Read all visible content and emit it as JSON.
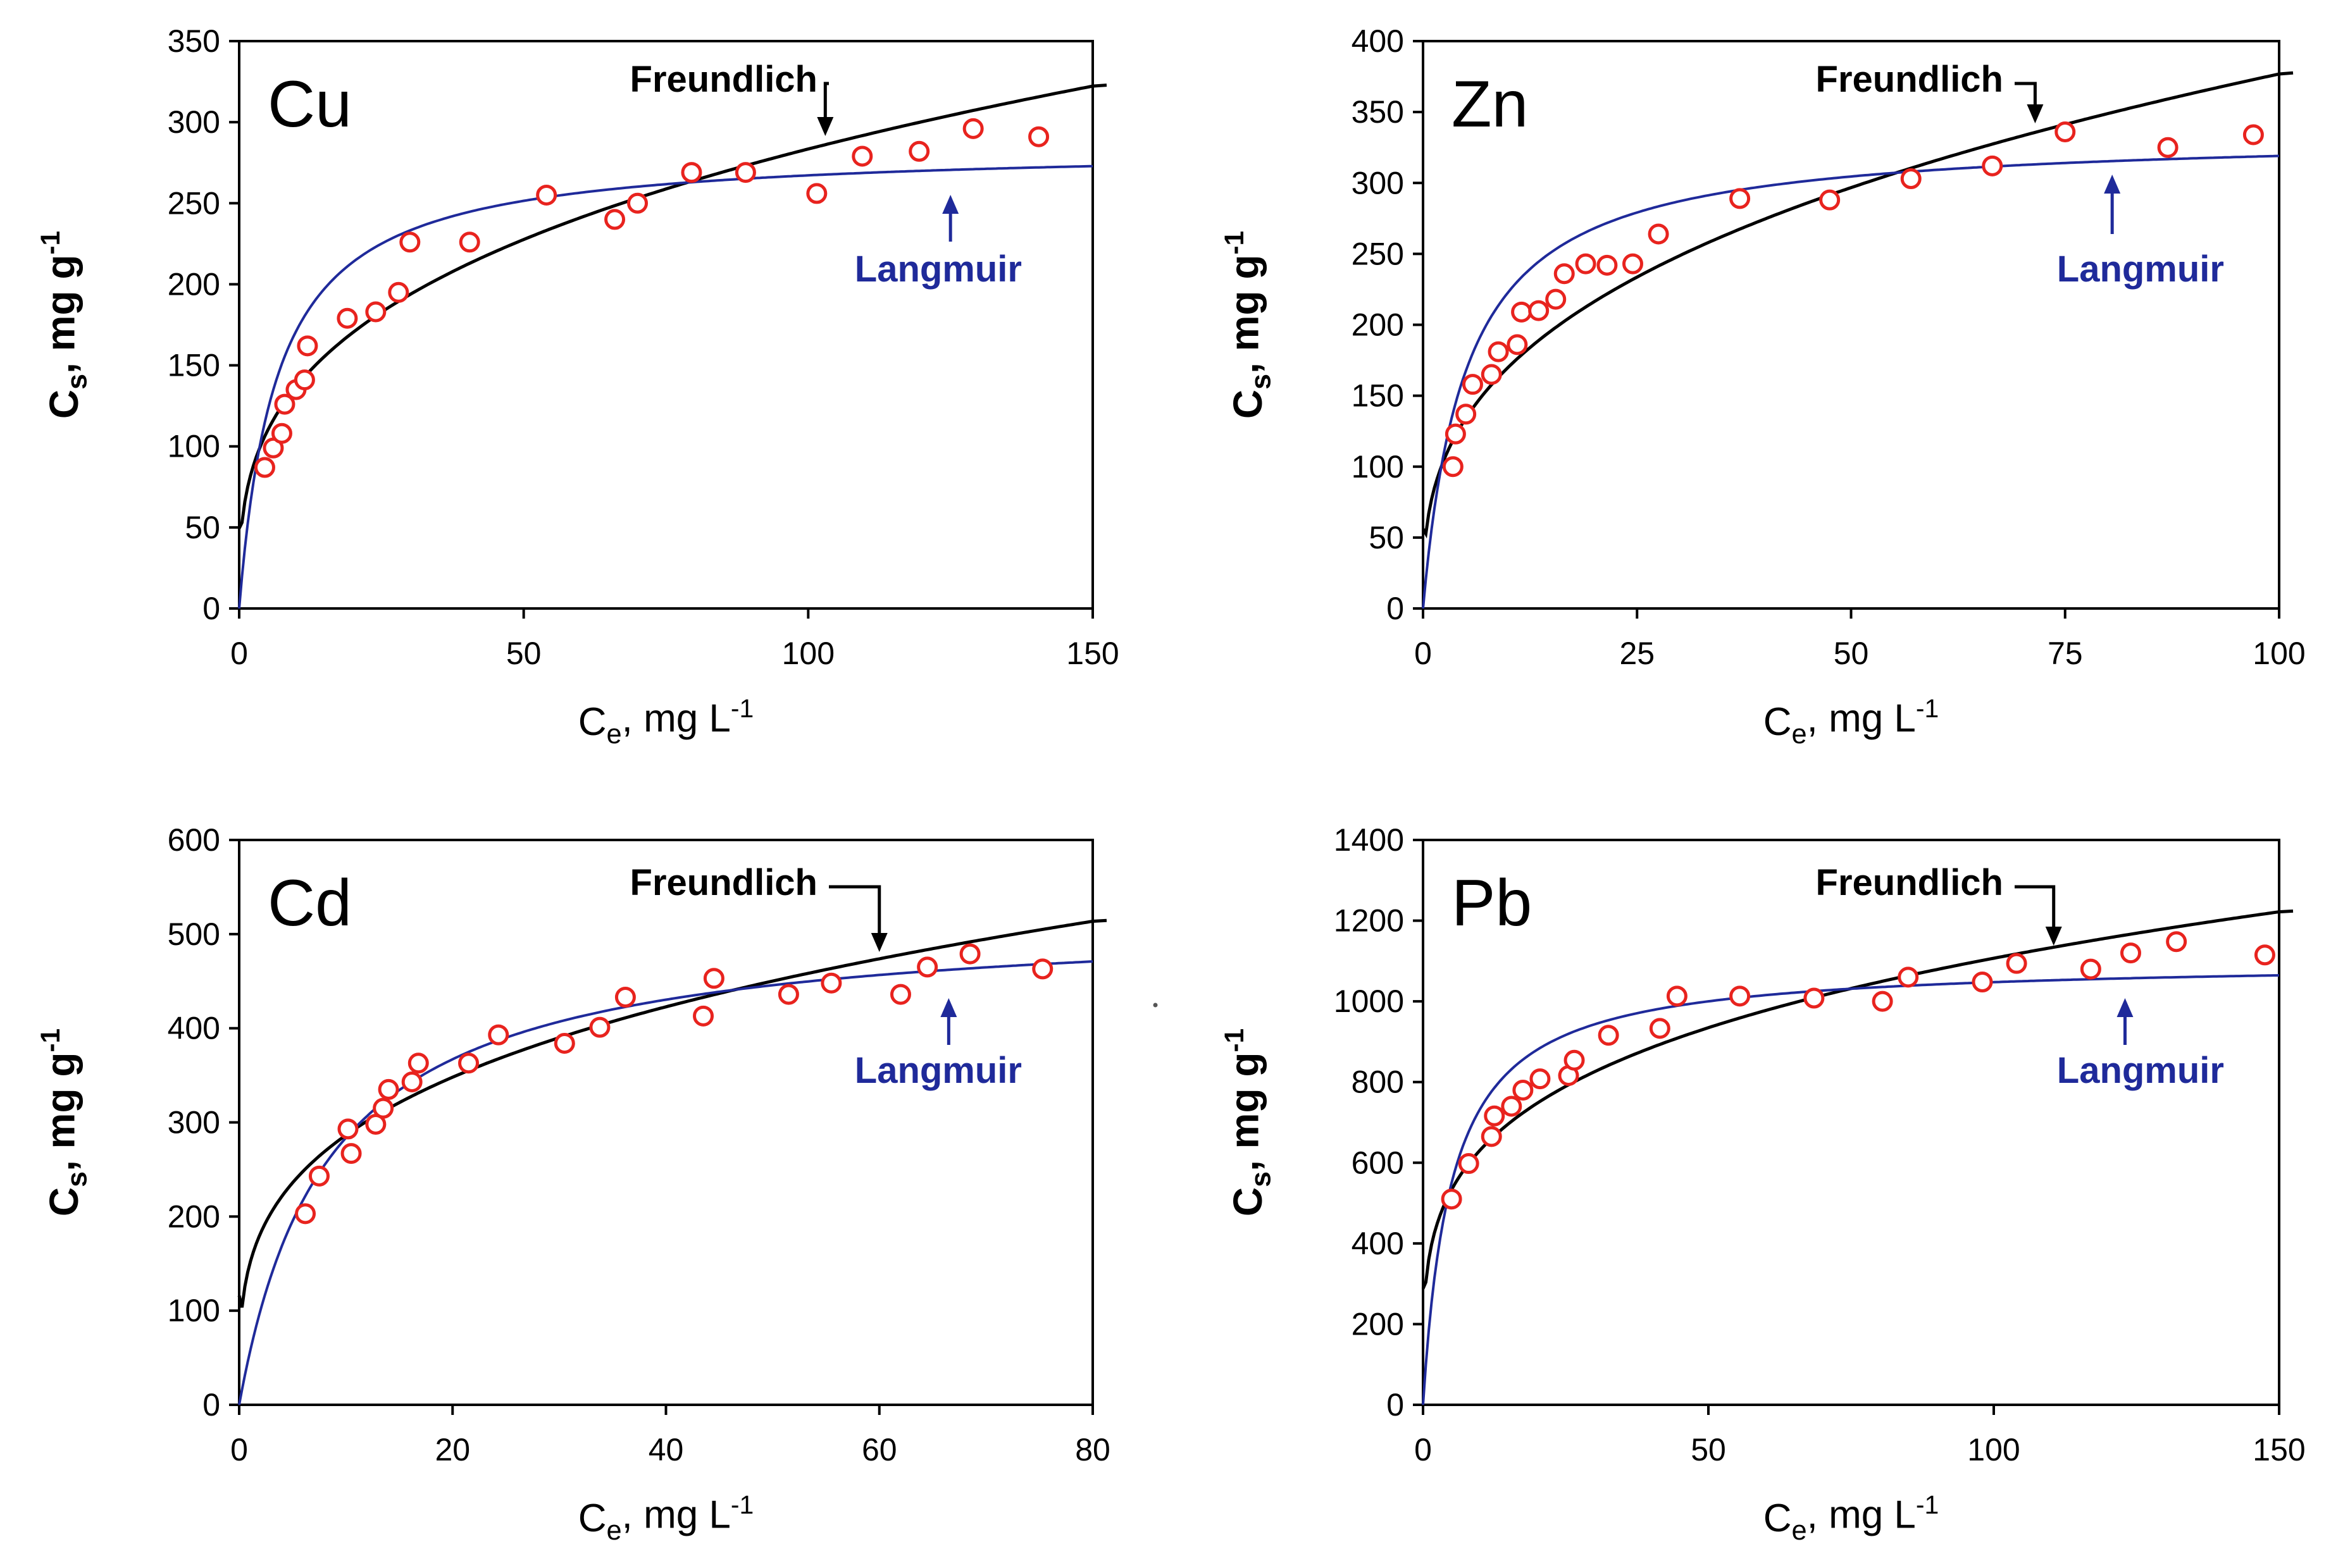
{
  "figure": {
    "colors": {
      "freundlich": "#000000",
      "langmuir": "#1f2a9a",
      "points": "#e8231e",
      "langmuir_text": "#1f2a9a"
    }
  },
  "chart_data": [
    {
      "type": "scatter",
      "panel_label": "Cu",
      "xlabel": {
        "main": "C",
        "sub": "e",
        "rest": ", mg L",
        "sup": "-1"
      },
      "ylabel": {
        "main": "C",
        "sub": "s",
        "rest": ", mg g",
        "sup": "-1"
      },
      "xlim": [
        0,
        150
      ],
      "ylim": [
        0,
        350
      ],
      "xticks": [
        0,
        50,
        100,
        150
      ],
      "xtick_labels": [
        "0",
        "50",
        "100",
        "150"
      ],
      "yticks": [
        0,
        50,
        100,
        150,
        200,
        250,
        300,
        350
      ],
      "ytick_labels": [
        "0",
        "50",
        "100",
        "150",
        "200",
        "250",
        "300",
        "350"
      ],
      "points": [
        [
          4.5,
          87
        ],
        [
          6,
          99
        ],
        [
          7.5,
          108
        ],
        [
          8,
          126
        ],
        [
          10,
          135
        ],
        [
          11.5,
          141
        ],
        [
          12,
          162
        ],
        [
          19,
          179
        ],
        [
          24,
          183
        ],
        [
          28,
          195
        ],
        [
          30,
          226
        ],
        [
          40.5,
          226
        ],
        [
          54,
          255
        ],
        [
          66,
          240
        ],
        [
          70,
          250
        ],
        [
          79.5,
          269
        ],
        [
          89,
          269
        ],
        [
          101.5,
          256
        ],
        [
          109.5,
          279
        ],
        [
          119.5,
          282
        ],
        [
          129,
          296
        ],
        [
          140.5,
          291
        ]
      ],
      "freundlich": {
        "KF": 66,
        "n": 3.16
      },
      "langmuir": {
        "qmax": 285,
        "KL": 0.15
      },
      "annotations": {
        "freundlich_label": "Freundlich",
        "langmuir_label": "Langmuir",
        "freundlich_arrow_x": 103,
        "langmuir_arrow_x": 125
      }
    },
    {
      "type": "scatter",
      "panel_label": "Zn",
      "xlabel": {
        "main": "C",
        "sub": "e",
        "rest": ", mg L",
        "sup": "-1"
      },
      "ylabel": {
        "main": "C",
        "sub": "s",
        "rest": ", mg g",
        "sup": "-1"
      },
      "xlim": [
        0,
        100
      ],
      "ylim": [
        0,
        400
      ],
      "xticks": [
        0,
        25,
        50,
        75,
        100
      ],
      "xtick_labels": [
        "0",
        "25",
        "50",
        "75",
        "100"
      ],
      "yticks": [
        0,
        50,
        100,
        150,
        200,
        250,
        300,
        350,
        400
      ],
      "ytick_labels": [
        "0",
        "50",
        "100",
        "150",
        "200",
        "250",
        "300",
        "350",
        "400"
      ],
      "points": [
        [
          3.5,
          100
        ],
        [
          3.8,
          123
        ],
        [
          5,
          137
        ],
        [
          5.8,
          158
        ],
        [
          8,
          165
        ],
        [
          8.8,
          181
        ],
        [
          11,
          186
        ],
        [
          11.5,
          209
        ],
        [
          13.5,
          210
        ],
        [
          15.5,
          218
        ],
        [
          16.5,
          236
        ],
        [
          19,
          243
        ],
        [
          21.5,
          242
        ],
        [
          24.5,
          243
        ],
        [
          27.5,
          264
        ],
        [
          37,
          289
        ],
        [
          47.5,
          288
        ],
        [
          57,
          303
        ],
        [
          66.5,
          312
        ],
        [
          75,
          336
        ],
        [
          87,
          325
        ],
        [
          97,
          334
        ]
      ],
      "freundlich": {
        "KF": 77,
        "n": 2.9
      },
      "langmuir": {
        "qmax": 335,
        "KL": 0.2
      },
      "annotations": {
        "freundlich_label": "Freundlich",
        "langmuir_label": "Langmuir",
        "freundlich_arrow_x": 71.5,
        "langmuir_arrow_x": 80.5
      }
    },
    {
      "type": "scatter",
      "panel_label": "Cd",
      "xlabel": {
        "main": "C",
        "sub": "e",
        "rest": ", mg L",
        "sup": "-1"
      },
      "ylabel": {
        "main": "C",
        "sub": "s",
        "rest": ", mg g",
        "sup": "-1"
      },
      "xlim": [
        0,
        80
      ],
      "ylim": [
        0,
        600
      ],
      "xticks": [
        0,
        20,
        40,
        60,
        80
      ],
      "xtick_labels": [
        "0",
        "20",
        "40",
        "60",
        "80"
      ],
      "yticks": [
        0,
        100,
        200,
        300,
        400,
        500,
        600
      ],
      "ytick_labels": [
        "0",
        "100",
        "200",
        "300",
        "400",
        "500",
        "600"
      ],
      "points": [
        [
          6.2,
          203
        ],
        [
          7.5,
          243
        ],
        [
          10.2,
          293
        ],
        [
          10.5,
          267
        ],
        [
          12.8,
          298
        ],
        [
          13.5,
          315
        ],
        [
          14,
          335
        ],
        [
          16.2,
          343
        ],
        [
          16.8,
          363
        ],
        [
          21.5,
          363
        ],
        [
          24.3,
          393
        ],
        [
          30.5,
          384
        ],
        [
          33.8,
          401
        ],
        [
          36.2,
          433
        ],
        [
          43.5,
          413
        ],
        [
          44.5,
          453
        ],
        [
          51.5,
          436
        ],
        [
          55.5,
          448
        ],
        [
          62,
          436
        ],
        [
          64.5,
          465
        ],
        [
          68.5,
          479
        ],
        [
          75.3,
          463
        ]
      ],
      "freundlich": {
        "KF": 150,
        "n": 3.56
      },
      "langmuir": {
        "qmax": 520,
        "KL": 0.12
      },
      "annotations": {
        "freundlich_label": "Freundlich",
        "langmuir_label": "Langmuir",
        "freundlich_arrow_x": 60,
        "langmuir_arrow_x": 66.5
      }
    },
    {
      "type": "scatter",
      "panel_label": "Pb",
      "xlabel": {
        "main": "C",
        "sub": "e",
        "rest": ", mg L",
        "sup": "-1"
      },
      "ylabel": {
        "main": "C",
        "sub": "s",
        "rest": ", mg g",
        "sup": "-1"
      },
      "xlim": [
        0,
        150
      ],
      "ylim": [
        0,
        1400
      ],
      "xticks": [
        0,
        50,
        100,
        150
      ],
      "xtick_labels": [
        "0",
        "50",
        "100",
        "150"
      ],
      "yticks": [
        0,
        200,
        400,
        600,
        800,
        1000,
        1200,
        1400
      ],
      "ytick_labels": [
        "0",
        "200",
        "400",
        "600",
        "800",
        "1000",
        "1200",
        "1400"
      ],
      "points": [
        [
          5,
          510
        ],
        [
          8,
          598
        ],
        [
          12,
          665
        ],
        [
          12.5,
          716
        ],
        [
          15.5,
          740
        ],
        [
          17.5,
          780
        ],
        [
          20.5,
          808
        ],
        [
          25.5,
          816
        ],
        [
          26.5,
          854
        ],
        [
          32.5,
          916
        ],
        [
          41.5,
          933
        ],
        [
          44.5,
          1013
        ],
        [
          55.5,
          1013
        ],
        [
          68.5,
          1008
        ],
        [
          80.5,
          1000
        ],
        [
          85,
          1060
        ],
        [
          98,
          1048
        ],
        [
          104,
          1094
        ],
        [
          117,
          1080
        ],
        [
          124,
          1120
        ],
        [
          132,
          1148
        ],
        [
          147.5,
          1115
        ]
      ],
      "freundlich": {
        "KF": 360,
        "n": 4.1
      },
      "langmuir": {
        "qmax": 1100,
        "KL": 0.2
      },
      "annotations": {
        "freundlich_label": "Freundlich",
        "langmuir_label": "Langmuir",
        "freundlich_arrow_x": 110.5,
        "langmuir_arrow_x": 123
      }
    }
  ]
}
